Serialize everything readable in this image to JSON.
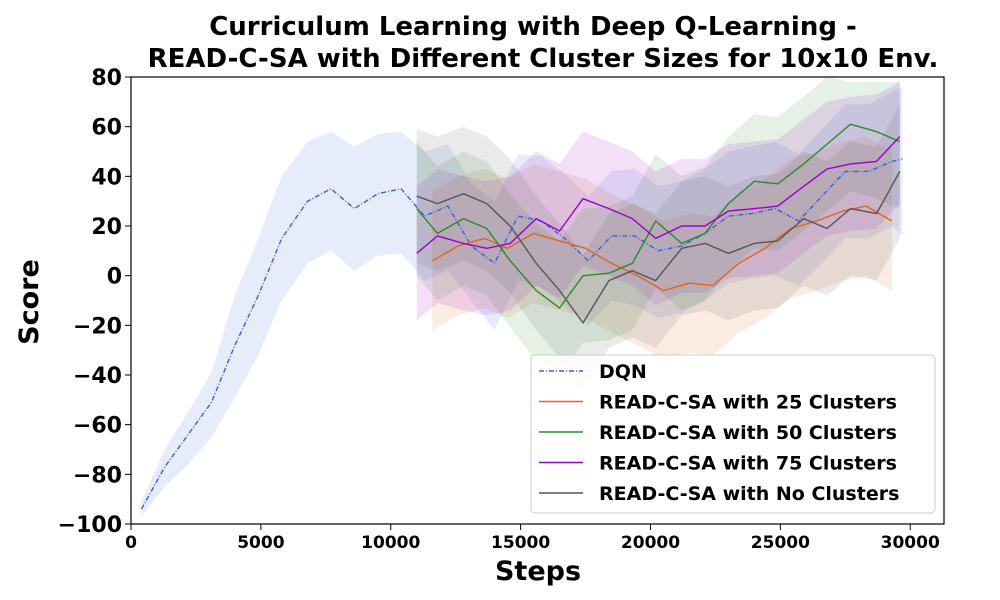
{
  "chart_data": {
    "type": "line",
    "title_lines": [
      "Curriculum Learning with Deep Q-Learning -",
      "READ-C-SA with Different Cluster Sizes for 10x10 Env."
    ],
    "xlabel": "Steps",
    "ylabel": "Score",
    "xlim": [
      0,
      31300
    ],
    "ylim": [
      -100,
      80
    ],
    "xticks": [
      0,
      5000,
      10000,
      15000,
      20000,
      25000,
      30000
    ],
    "yticks": [
      -100,
      -80,
      -60,
      -40,
      -20,
      0,
      20,
      40,
      60,
      80
    ],
    "xtick_labels": [
      "0",
      "5000",
      "10000",
      "15000",
      "20000",
      "25000",
      "30000"
    ],
    "ytick_labels": [
      "−100",
      "−80",
      "−60",
      "−40",
      "−20",
      "0",
      "20",
      "40",
      "60",
      "80"
    ],
    "legend_position": "lower right",
    "grid": false,
    "series": [
      {
        "name": "DQN",
        "color": "#3a5fe0",
        "linestyle": "dashdot",
        "x": [
          400,
          1300,
          2200,
          3100,
          4000,
          4900,
          5800,
          6800,
          7700,
          8600,
          9500,
          10400,
          11300,
          12200,
          13100,
          14000,
          14900,
          15800,
          16700,
          17600,
          18500,
          19400,
          20300,
          21200,
          22100,
          23000,
          23900,
          24800,
          25700,
          26600,
          27500,
          28400,
          29300,
          29700
        ],
        "y": [
          -94,
          -77,
          -64,
          -51,
          -28,
          -8,
          15,
          30,
          35,
          27,
          33,
          35,
          24,
          28,
          12,
          5,
          24,
          22,
          15,
          6,
          16,
          16,
          10,
          12,
          17,
          24,
          25,
          27,
          22,
          32,
          42,
          42,
          46,
          47
        ],
        "lower": [
          -97,
          -85,
          -76,
          -65,
          -49,
          -32,
          -10,
          5,
          10,
          2,
          8,
          9,
          -2,
          2,
          -10,
          -22,
          -2,
          -5,
          -12,
          -20,
          -10,
          -12,
          -17,
          -15,
          -10,
          -3,
          -1,
          0,
          -4,
          5,
          15,
          15,
          20,
          16
        ],
        "upper": [
          -91,
          -70,
          -55,
          -39,
          -8,
          15,
          40,
          54,
          58,
          52,
          57,
          58,
          50,
          53,
          37,
          30,
          49,
          48,
          41,
          32,
          42,
          43,
          36,
          38,
          43,
          50,
          52,
          54,
          49,
          59,
          69,
          69,
          74,
          76
        ]
      },
      {
        "name": "READ-C-SA with 25 Clusters",
        "color": "#e0651a",
        "linestyle": "solid",
        "x": [
          11600,
          12600,
          13600,
          14500,
          15500,
          16500,
          17500,
          18500,
          19500,
          20500,
          21500,
          22400,
          23400,
          24400,
          25400,
          26400,
          27400,
          28300,
          29300
        ],
        "y": [
          6,
          12,
          15,
          11,
          17,
          14,
          11,
          5,
          0,
          -6,
          -3,
          -4,
          5,
          11,
          19,
          22,
          26,
          28,
          22
        ],
        "lower": [
          -22,
          -16,
          -13,
          -17,
          -11,
          -14,
          -17,
          -23,
          -28,
          -34,
          -31,
          -32,
          -23,
          -17,
          -9,
          -6,
          -2,
          0,
          -6
        ],
        "upper": [
          34,
          40,
          43,
          39,
          45,
          42,
          39,
          33,
          28,
          22,
          25,
          24,
          33,
          39,
          47,
          50,
          54,
          56,
          50
        ]
      },
      {
        "name": "READ-C-SA with 50 Clusters",
        "color": "#2a8a2a",
        "linestyle": "solid",
        "x": [
          11000,
          11800,
          12800,
          13700,
          14600,
          15600,
          16500,
          17400,
          18400,
          19300,
          20200,
          21200,
          22100,
          23000,
          24000,
          24900,
          25900,
          26800,
          27700,
          28700,
          29600
        ],
        "y": [
          27,
          17,
          23,
          19,
          6,
          -6,
          -13,
          0,
          1,
          5,
          22,
          13,
          17,
          29,
          38,
          37,
          45,
          53,
          61,
          58,
          54
        ],
        "lower": [
          0,
          -10,
          -4,
          -8,
          -21,
          -34,
          -40,
          -27,
          -26,
          -22,
          -5,
          -14,
          -10,
          2,
          11,
          10,
          18,
          26,
          34,
          31,
          27
        ],
        "upper": [
          54,
          44,
          50,
          46,
          33,
          21,
          14,
          27,
          28,
          32,
          49,
          40,
          44,
          56,
          65,
          64,
          72,
          80,
          78,
          78,
          78
        ]
      },
      {
        "name": "READ-C-SA with 75 Clusters",
        "color": "#9a00c8",
        "linestyle": "solid",
        "x": [
          11000,
          11800,
          12800,
          13700,
          14600,
          15600,
          16500,
          17400,
          18400,
          19300,
          20200,
          21200,
          22100,
          23000,
          24000,
          24900,
          25900,
          26800,
          27700,
          28700,
          29600
        ],
        "y": [
          9,
          16,
          13,
          11,
          13,
          23,
          18,
          31,
          27,
          23,
          15,
          20,
          20,
          26,
          27,
          28,
          36,
          43,
          45,
          46,
          56
        ],
        "lower": [
          -18,
          -11,
          -14,
          -16,
          -14,
          -4,
          -9,
          4,
          0,
          -4,
          -12,
          -7,
          -7,
          -1,
          0,
          1,
          9,
          16,
          18,
          19,
          29
        ],
        "upper": [
          36,
          43,
          40,
          38,
          40,
          50,
          45,
          58,
          54,
          50,
          42,
          47,
          47,
          53,
          54,
          55,
          63,
          70,
          72,
          73,
          78
        ]
      },
      {
        "name": "READ-C-SA with No Clusters",
        "color": "#555555",
        "linestyle": "solid",
        "x": [
          11000,
          11800,
          12800,
          13700,
          14600,
          15600,
          16500,
          17400,
          18400,
          19300,
          20200,
          21200,
          22100,
          23000,
          24000,
          24900,
          25900,
          26800,
          27700,
          28700,
          29600
        ],
        "y": [
          32,
          29,
          33,
          29,
          20,
          5,
          -6,
          -19,
          -2,
          2,
          -2,
          11,
          13,
          9,
          13,
          14,
          23,
          19,
          27,
          25,
          42
        ],
        "lower": [
          5,
          2,
          6,
          2,
          -7,
          -22,
          -33,
          -46,
          -29,
          -25,
          -29,
          -16,
          -14,
          -18,
          -14,
          -13,
          -4,
          -8,
          0,
          -2,
          15
        ],
        "upper": [
          59,
          56,
          60,
          56,
          47,
          32,
          21,
          8,
          25,
          29,
          25,
          38,
          40,
          36,
          40,
          41,
          50,
          46,
          54,
          52,
          69
        ]
      }
    ]
  }
}
